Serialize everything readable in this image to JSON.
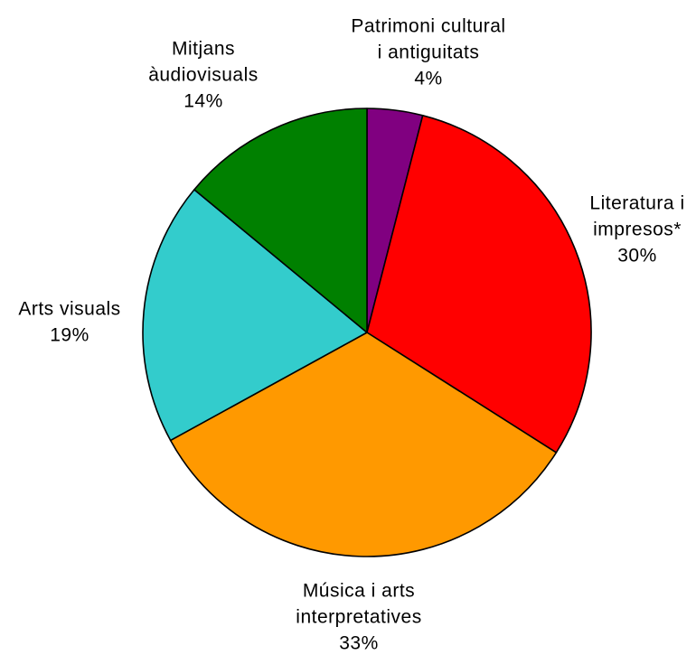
{
  "chart_data": {
    "type": "pie",
    "title": "",
    "start_angle_deg": 0,
    "direction": "clockwise",
    "slices": [
      {
        "label_lines": [
          "Patrimoni cultural",
          "i antiguitats"
        ],
        "value": 4,
        "percent_label": "4%",
        "color": "#800080"
      },
      {
        "label_lines": [
          "Literatura i",
          "impresos*"
        ],
        "value": 30,
        "percent_label": "30%",
        "color": "#ff0000"
      },
      {
        "label_lines": [
          "Música i arts",
          "interpretatives"
        ],
        "value": 33,
        "percent_label": "33%",
        "color": "#ff9900"
      },
      {
        "label_lines": [
          "Arts visuals"
        ],
        "value": 19,
        "percent_label": "19%",
        "color": "#33cccc"
      },
      {
        "label_lines": [
          "Mitjans",
          "àudiovisuals"
        ],
        "value": 14,
        "percent_label": "14%",
        "color": "#008000"
      }
    ]
  }
}
